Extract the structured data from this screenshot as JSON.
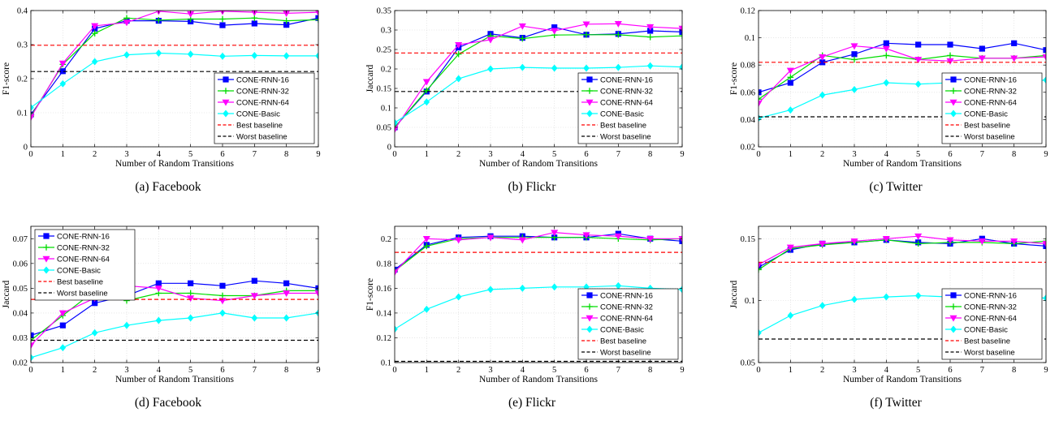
{
  "style": {
    "colors": [
      "#0000ff",
      "#00dd00",
      "#ff00ff",
      "#00ffff",
      "#ff0000",
      "#000000"
    ],
    "markers": [
      "square",
      "plus",
      "triangle-down",
      "diamond",
      "none",
      "none"
    ],
    "dashed": [
      false,
      false,
      false,
      false,
      true,
      true
    ]
  },
  "chart_data": [
    {
      "type": "line",
      "caption": "(a)  Facebook",
      "xlabel": "Number of Random Transitions",
      "ylabel": "F1-score",
      "x": [
        0,
        1,
        2,
        3,
        4,
        5,
        6,
        7,
        8,
        9
      ],
      "xlim": [
        0,
        9
      ],
      "ylim": [
        0,
        0.4
      ],
      "yticks": [
        0,
        0.1,
        0.2,
        0.3,
        0.4
      ],
      "ytick_labels": [
        "0",
        "0.1",
        "0.2",
        "0.3",
        "0.4"
      ],
      "grid": true,
      "legend_position": "lower-right",
      "series": [
        {
          "name": "CONE-RNN-16",
          "values": [
            0.095,
            0.222,
            0.347,
            0.37,
            0.37,
            0.368,
            0.357,
            0.362,
            0.358,
            0.378
          ]
        },
        {
          "name": "CONE-RNN-32",
          "values": [
            0.09,
            0.242,
            0.333,
            0.378,
            0.372,
            0.375,
            0.375,
            0.378,
            0.37,
            0.373
          ]
        },
        {
          "name": "CONE-RNN-64",
          "values": [
            0.087,
            0.245,
            0.355,
            0.365,
            0.398,
            0.39,
            0.398,
            0.395,
            0.392,
            0.395
          ]
        },
        {
          "name": "CONE-Basic",
          "values": [
            0.115,
            0.185,
            0.25,
            0.27,
            0.275,
            0.272,
            0.266,
            0.268,
            0.267,
            0.267
          ]
        },
        {
          "name": "Best baseline",
          "values": [
            0.298,
            0.298,
            0.298,
            0.298,
            0.298,
            0.298,
            0.298,
            0.298,
            0.298,
            0.298
          ]
        },
        {
          "name": "Worst baseline",
          "values": [
            0.221,
            0.221,
            0.221,
            0.221,
            0.221,
            0.221,
            0.221,
            0.221,
            0.221,
            0.221
          ]
        }
      ]
    },
    {
      "type": "line",
      "caption": "(b)  Flickr",
      "xlabel": "Number of Random Transitions",
      "ylabel": "Jaccard",
      "x": [
        0,
        1,
        2,
        3,
        4,
        5,
        6,
        7,
        8,
        9
      ],
      "xlim": [
        0,
        9
      ],
      "ylim": [
        0,
        0.35
      ],
      "yticks": [
        0,
        0.05,
        0.1,
        0.15,
        0.2,
        0.25,
        0.3,
        0.35
      ],
      "ytick_labels": [
        "0",
        "0.05",
        "0.1",
        "0.15",
        "0.2",
        "0.25",
        "0.3",
        "0.35"
      ],
      "grid": true,
      "legend_position": "lower-right",
      "series": [
        {
          "name": "CONE-RNN-16",
          "values": [
            0.05,
            0.142,
            0.255,
            0.29,
            0.28,
            0.307,
            0.288,
            0.29,
            0.298,
            0.295
          ]
        },
        {
          "name": "CONE-RNN-32",
          "values": [
            0.05,
            0.145,
            0.238,
            0.285,
            0.278,
            0.287,
            0.288,
            0.288,
            0.282,
            0.285
          ]
        },
        {
          "name": "CONE-RNN-64",
          "values": [
            0.045,
            0.167,
            0.262,
            0.275,
            0.31,
            0.298,
            0.315,
            0.316,
            0.308,
            0.304
          ]
        },
        {
          "name": "CONE-Basic",
          "values": [
            0.062,
            0.115,
            0.175,
            0.2,
            0.204,
            0.202,
            0.202,
            0.204,
            0.208,
            0.205
          ]
        },
        {
          "name": "Best baseline",
          "values": [
            0.241,
            0.241,
            0.241,
            0.241,
            0.241,
            0.241,
            0.241,
            0.241,
            0.241,
            0.241
          ]
        },
        {
          "name": "Worst baseline",
          "values": [
            0.142,
            0.142,
            0.142,
            0.142,
            0.142,
            0.142,
            0.142,
            0.142,
            0.142,
            0.142
          ]
        }
      ]
    },
    {
      "type": "line",
      "caption": "(c)  Twitter",
      "xlabel": "Number of Random Transitions",
      "ylabel": "F1-score",
      "x": [
        0,
        1,
        2,
        3,
        4,
        5,
        6,
        7,
        8,
        9
      ],
      "xlim": [
        0,
        9
      ],
      "ylim": [
        0.02,
        0.12
      ],
      "yticks": [
        0.02,
        0.04,
        0.06,
        0.08,
        0.1,
        0.12
      ],
      "ytick_labels": [
        "0.02",
        "0.04",
        "0.06",
        "0.08",
        "0.1",
        "0.12"
      ],
      "grid": true,
      "legend_position": "lower-right",
      "series": [
        {
          "name": "CONE-RNN-16",
          "values": [
            0.06,
            0.067,
            0.082,
            0.088,
            0.096,
            0.095,
            0.095,
            0.092,
            0.096,
            0.091
          ]
        },
        {
          "name": "CONE-RNN-32",
          "values": [
            0.055,
            0.071,
            0.087,
            0.084,
            0.087,
            0.084,
            0.087,
            0.085,
            0.085,
            0.087
          ]
        },
        {
          "name": "CONE-RNN-64",
          "values": [
            0.052,
            0.076,
            0.086,
            0.094,
            0.092,
            0.084,
            0.083,
            0.085,
            0.085,
            0.086
          ]
        },
        {
          "name": "CONE-Basic",
          "values": [
            0.041,
            0.047,
            0.058,
            0.062,
            0.067,
            0.066,
            0.067,
            0.069,
            0.067,
            0.069
          ]
        },
        {
          "name": "Best baseline",
          "values": [
            0.082,
            0.082,
            0.082,
            0.082,
            0.082,
            0.082,
            0.082,
            0.082,
            0.082,
            0.082
          ]
        },
        {
          "name": "Worst baseline",
          "values": [
            0.042,
            0.042,
            0.042,
            0.042,
            0.042,
            0.042,
            0.042,
            0.042,
            0.042,
            0.042
          ]
        }
      ]
    },
    {
      "type": "line",
      "caption": "(d)  Facebook",
      "xlabel": "Number of Random Transitions",
      "ylabel": "Jaccard",
      "x": [
        0,
        1,
        2,
        3,
        4,
        5,
        6,
        7,
        8,
        9
      ],
      "xlim": [
        0,
        9
      ],
      "ylim": [
        0.02,
        0.075
      ],
      "yticks": [
        0.02,
        0.03,
        0.04,
        0.05,
        0.06,
        0.07
      ],
      "ytick_labels": [
        "0.02",
        "0.03",
        "0.04",
        "0.05",
        "0.06",
        "0.07"
      ],
      "grid": true,
      "legend_position": "upper-left",
      "series": [
        {
          "name": "CONE-RNN-16",
          "values": [
            0.031,
            0.035,
            0.044,
            0.047,
            0.052,
            0.052,
            0.051,
            0.053,
            0.052,
            0.05
          ]
        },
        {
          "name": "CONE-RNN-32",
          "values": [
            0.029,
            0.039,
            0.049,
            0.045,
            0.048,
            0.048,
            0.047,
            0.047,
            0.049,
            0.049
          ]
        },
        {
          "name": "CONE-RNN-64",
          "values": [
            0.027,
            0.04,
            0.046,
            0.051,
            0.05,
            0.046,
            0.045,
            0.047,
            0.048,
            0.048
          ]
        },
        {
          "name": "CONE-Basic",
          "values": [
            0.022,
            0.026,
            0.032,
            0.035,
            0.037,
            0.038,
            0.04,
            0.038,
            0.038,
            0.04
          ]
        },
        {
          "name": "Best baseline",
          "values": [
            0.0455,
            0.0455,
            0.0455,
            0.0455,
            0.0455,
            0.0455,
            0.0455,
            0.0455,
            0.0455,
            0.0455
          ]
        },
        {
          "name": "Worst baseline",
          "values": [
            0.029,
            0.029,
            0.029,
            0.029,
            0.029,
            0.029,
            0.029,
            0.029,
            0.029,
            0.029
          ]
        }
      ]
    },
    {
      "type": "line",
      "caption": "(e)  Flickr",
      "xlabel": "Number of Random Transitions",
      "ylabel": "F1-score",
      "x": [
        0,
        1,
        2,
        3,
        4,
        5,
        6,
        7,
        8,
        9
      ],
      "xlim": [
        0,
        9
      ],
      "ylim": [
        0.1,
        0.21
      ],
      "yticks": [
        0.1,
        0.12,
        0.14,
        0.16,
        0.18,
        0.2
      ],
      "ytick_labels": [
        "0.1",
        "0.12",
        "0.14",
        "0.16",
        "0.18",
        "0.2"
      ],
      "grid": true,
      "legend_position": "lower-right",
      "series": [
        {
          "name": "CONE-RNN-16",
          "values": [
            0.175,
            0.195,
            0.201,
            0.202,
            0.202,
            0.201,
            0.201,
            0.204,
            0.2,
            0.198
          ]
        },
        {
          "name": "CONE-RNN-32",
          "values": [
            0.174,
            0.194,
            0.2,
            0.201,
            0.201,
            0.201,
            0.201,
            0.2,
            0.199,
            0.2
          ]
        },
        {
          "name": "CONE-RNN-64",
          "values": [
            0.173,
            0.2,
            0.199,
            0.201,
            0.199,
            0.205,
            0.203,
            0.202,
            0.2,
            0.2
          ]
        },
        {
          "name": "CONE-Basic",
          "values": [
            0.127,
            0.143,
            0.153,
            0.159,
            0.16,
            0.161,
            0.161,
            0.162,
            0.16,
            0.159
          ]
        },
        {
          "name": "Best baseline",
          "values": [
            0.189,
            0.189,
            0.189,
            0.189,
            0.189,
            0.189,
            0.189,
            0.189,
            0.189,
            0.189
          ]
        },
        {
          "name": "Worst baseline",
          "values": [
            0.101,
            0.101,
            0.101,
            0.101,
            0.101,
            0.101,
            0.101,
            0.101,
            0.101,
            0.101
          ]
        }
      ]
    },
    {
      "type": "line",
      "caption": "(f)  Twitter",
      "xlabel": "Number of Random Transitions",
      "ylabel": "Jaccard",
      "x": [
        0,
        1,
        2,
        3,
        4,
        5,
        6,
        7,
        8,
        9
      ],
      "xlim": [
        0,
        9
      ],
      "ylim": [
        0.05,
        0.16
      ],
      "yticks": [
        0.05,
        0.1,
        0.15
      ],
      "ytick_labels": [
        "0.05",
        "0.1",
        "0.15"
      ],
      "grid": true,
      "legend_position": "lower-right",
      "series": [
        {
          "name": "CONE-RNN-16",
          "values": [
            0.127,
            0.141,
            0.146,
            0.147,
            0.149,
            0.147,
            0.146,
            0.15,
            0.146,
            0.144
          ]
        },
        {
          "name": "CONE-RNN-32",
          "values": [
            0.125,
            0.142,
            0.145,
            0.147,
            0.149,
            0.146,
            0.147,
            0.147,
            0.146,
            0.148
          ]
        },
        {
          "name": "CONE-RNN-64",
          "values": [
            0.129,
            0.143,
            0.146,
            0.148,
            0.15,
            0.152,
            0.149,
            0.148,
            0.148,
            0.146
          ]
        },
        {
          "name": "CONE-Basic",
          "values": [
            0.074,
            0.088,
            0.096,
            0.101,
            0.103,
            0.104,
            0.103,
            0.103,
            0.104,
            0.102
          ]
        },
        {
          "name": "Best baseline",
          "values": [
            0.131,
            0.131,
            0.131,
            0.131,
            0.131,
            0.131,
            0.131,
            0.131,
            0.131,
            0.131
          ]
        },
        {
          "name": "Worst baseline",
          "values": [
            0.069,
            0.069,
            0.069,
            0.069,
            0.069,
            0.069,
            0.069,
            0.069,
            0.069,
            0.069
          ]
        }
      ]
    }
  ]
}
